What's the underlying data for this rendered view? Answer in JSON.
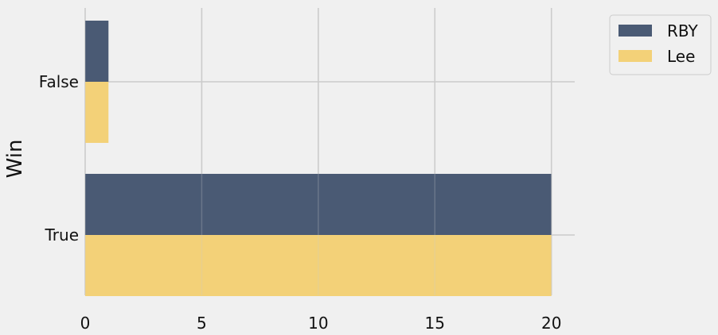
{
  "chart_data": {
    "type": "bar",
    "orientation": "horizontal",
    "categories": [
      "False",
      "True"
    ],
    "series": [
      {
        "name": "RBY",
        "values": [
          1,
          20
        ],
        "color": "#4a5a74"
      },
      {
        "name": "Lee",
        "values": [
          1,
          20
        ],
        "color": "#f3d178"
      }
    ],
    "xlabel": "",
    "ylabel": "Win",
    "xlim": [
      0,
      21
    ],
    "xticks": [
      0,
      5,
      10,
      15,
      20
    ],
    "grid": true,
    "legend_placement": "outside-top-right"
  }
}
